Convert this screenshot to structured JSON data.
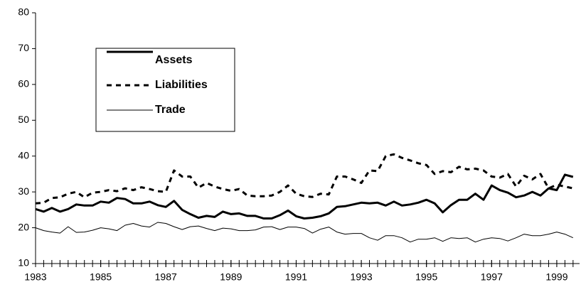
{
  "chart_data": {
    "type": "line",
    "x": [
      1983,
      1983.25,
      1983.5,
      1983.75,
      1984,
      1984.25,
      1984.5,
      1984.75,
      1985,
      1985.25,
      1985.5,
      1985.75,
      1986,
      1986.25,
      1986.5,
      1986.75,
      1987,
      1987.25,
      1987.5,
      1987.75,
      1988,
      1988.25,
      1988.5,
      1988.75,
      1989,
      1989.25,
      1989.5,
      1989.75,
      1990,
      1990.25,
      1990.5,
      1990.75,
      1991,
      1991.25,
      1991.5,
      1991.75,
      1992,
      1992.25,
      1992.5,
      1992.75,
      1993,
      1993.25,
      1993.5,
      1993.75,
      1994,
      1994.25,
      1994.5,
      1994.75,
      1995,
      1995.25,
      1995.5,
      1995.75,
      1996,
      1996.25,
      1996.5,
      1996.75,
      1997,
      1997.25,
      1997.5,
      1997.75,
      1998,
      1998.25,
      1998.5,
      1998.75,
      1999,
      1999.25,
      1999.5
    ],
    "series": [
      {
        "name": "Assets",
        "color": "#000000",
        "linewidth": 3,
        "linestyle": "solid",
        "values": [
          25.2,
          24.5,
          25.5,
          24.5,
          25.2,
          26.5,
          26.2,
          26.2,
          27.3,
          27.0,
          28.3,
          28.0,
          26.8,
          26.8,
          27.3,
          26.3,
          25.8,
          27.5,
          25.0,
          23.8,
          22.8,
          23.3,
          23.0,
          24.5,
          23.8,
          24.0,
          23.3,
          23.3,
          22.6,
          22.6,
          23.5,
          24.8,
          23.2,
          22.6,
          22.8,
          23.2,
          24.0,
          25.8,
          26.0,
          26.5,
          27.0,
          26.8,
          27.0,
          26.2,
          27.3,
          26.2,
          26.5,
          27.0,
          27.8,
          26.8,
          24.3,
          26.3,
          27.8,
          27.8,
          29.5,
          27.8,
          31.8,
          30.5,
          29.8,
          28.5,
          29.0,
          30.0,
          29.0,
          31.0,
          30.5,
          34.8,
          34.2
        ]
      },
      {
        "name": "Liabilities",
        "color": "#000000",
        "linewidth": 3,
        "linestyle": "dashed",
        "values": [
          26.8,
          27.0,
          28.3,
          28.5,
          29.5,
          30.0,
          28.5,
          29.8,
          30.0,
          30.5,
          30.2,
          31.0,
          30.5,
          31.3,
          30.8,
          30.2,
          30.0,
          36.0,
          34.3,
          34.3,
          31.2,
          32.5,
          31.5,
          30.8,
          30.3,
          30.8,
          29.0,
          28.8,
          28.8,
          29.0,
          30.0,
          31.8,
          29.5,
          28.8,
          28.6,
          29.5,
          29.3,
          34.3,
          34.3,
          33.5,
          32.5,
          36.0,
          35.8,
          40.0,
          40.5,
          39.5,
          38.8,
          38.0,
          37.5,
          35.0,
          35.8,
          35.5,
          37.0,
          36.3,
          36.5,
          36.0,
          34.3,
          34.0,
          35.0,
          31.5,
          34.5,
          33.5,
          35.0,
          31.0,
          32.0,
          31.5,
          31.0
        ]
      },
      {
        "name": "Trade",
        "color": "#000000",
        "linewidth": 1,
        "linestyle": "solid",
        "values": [
          20.0,
          19.2,
          18.8,
          18.5,
          20.3,
          18.7,
          18.8,
          19.3,
          20.0,
          19.7,
          19.2,
          20.7,
          21.2,
          20.5,
          20.2,
          21.5,
          21.2,
          20.3,
          19.5,
          20.3,
          20.5,
          19.8,
          19.2,
          19.9,
          19.7,
          19.2,
          19.2,
          19.4,
          20.2,
          20.3,
          19.5,
          20.2,
          20.2,
          19.8,
          18.5,
          19.6,
          20.2,
          18.8,
          18.2,
          18.4,
          18.4,
          17.2,
          16.5,
          17.8,
          17.8,
          17.2,
          16.0,
          16.8,
          16.8,
          17.2,
          16.2,
          17.2,
          17.0,
          17.2,
          16.0,
          16.8,
          17.2,
          17.0,
          16.3,
          17.2,
          18.2,
          17.8,
          17.8,
          18.2,
          18.8,
          18.2,
          17.2
        ]
      }
    ],
    "xlim": [
      1983,
      1999.7
    ],
    "xticks": [
      1983,
      1985,
      1987,
      1989,
      1991,
      1993,
      1995,
      1997,
      1999
    ],
    "ylim": [
      10,
      80
    ],
    "yticks": [
      10,
      20,
      30,
      40,
      50,
      60,
      70,
      80
    ],
    "grid": false,
    "legend": "upper left"
  }
}
